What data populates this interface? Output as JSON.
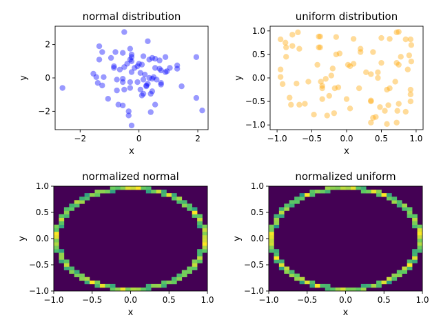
{
  "figure": {
    "background": "#ffffff"
  },
  "chart_data": [
    {
      "type": "scatter",
      "title": "normal distribution",
      "xlabel": "x",
      "ylabel": "y",
      "xlim": [
        -2.85,
        2.35
      ],
      "ylim": [
        -3.1,
        3.1
      ],
      "xticks": [
        -2,
        0,
        2
      ],
      "xtick_labels": [
        "−2",
        "0",
        "2"
      ],
      "yticks": [
        -2,
        0,
        2
      ],
      "ytick_labels": [
        "−2",
        "0",
        "2"
      ],
      "grid": false,
      "legend": "none",
      "color": "#0000ff",
      "alpha": 0.4,
      "points": [
        [
          -2.6,
          -0.6
        ],
        [
          -0.5,
          2.75
        ],
        [
          0.3,
          2.2
        ],
        [
          0.15,
          1.3
        ],
        [
          -1.35,
          1.9
        ],
        [
          -1.25,
          1.55
        ],
        [
          -0.8,
          1.55
        ],
        [
          -0.55,
          1.5
        ],
        [
          -0.3,
          1.75
        ],
        [
          -0.25,
          1.4
        ],
        [
          -0.3,
          1.1
        ],
        [
          -0.25,
          1.0
        ],
        [
          0.45,
          1.2
        ],
        [
          0.35,
          1.1
        ],
        [
          0.55,
          1.15
        ],
        [
          0.7,
          1.05
        ],
        [
          0.9,
          1.25
        ],
        [
          1.95,
          1.25
        ],
        [
          -0.95,
          1.2
        ],
        [
          -1.35,
          1.1
        ],
        [
          0.0,
          0.85
        ],
        [
          0.1,
          0.8
        ],
        [
          -0.05,
          0.7
        ],
        [
          -0.4,
          0.85
        ],
        [
          -0.5,
          0.65
        ],
        [
          -0.65,
          0.5
        ],
        [
          -0.85,
          0.6
        ],
        [
          -0.85,
          0.7
        ],
        [
          0.55,
          0.6
        ],
        [
          0.7,
          0.55
        ],
        [
          0.75,
          0.45
        ],
        [
          1.05,
          0.6
        ],
        [
          1.3,
          0.75
        ],
        [
          1.3,
          0.55
        ],
        [
          0.95,
          0.4
        ],
        [
          0.9,
          0.35
        ],
        [
          -0.25,
          0.35
        ],
        [
          0.05,
          0.3
        ],
        [
          0.2,
          0.2
        ],
        [
          -1.55,
          0.25
        ],
        [
          -1.45,
          0.05
        ],
        [
          -1.2,
          0.05
        ],
        [
          -1.4,
          -0.3
        ],
        [
          -1.25,
          -0.45
        ],
        [
          -0.75,
          -0.1
        ],
        [
          -0.55,
          -0.05
        ],
        [
          -0.55,
          -0.25
        ],
        [
          -0.05,
          -0.25
        ],
        [
          0.15,
          -0.1
        ],
        [
          0.3,
          -0.35
        ],
        [
          0.45,
          -0.05
        ],
        [
          0.5,
          0.05
        ],
        [
          0.6,
          -0.1
        ],
        [
          0.75,
          -0.3
        ],
        [
          0.75,
          -0.4
        ],
        [
          -0.3,
          -0.6
        ],
        [
          0.05,
          -0.7
        ],
        [
          0.25,
          -0.5
        ],
        [
          -0.75,
          -0.75
        ],
        [
          -0.5,
          -0.7
        ],
        [
          0.15,
          -0.95
        ],
        [
          0.4,
          -0.95
        ],
        [
          0.45,
          -0.8
        ],
        [
          0.1,
          -1.05
        ],
        [
          -1.05,
          -1.25
        ],
        [
          -0.7,
          -1.6
        ],
        [
          -0.55,
          -1.65
        ],
        [
          -0.35,
          -2.0
        ],
        [
          -0.35,
          -2.25
        ],
        [
          0.4,
          -2.05
        ],
        [
          0.55,
          -1.6
        ],
        [
          -0.25,
          -2.85
        ],
        [
          1.45,
          -0.5
        ],
        [
          1.95,
          -1.2
        ],
        [
          2.15,
          -1.95
        ],
        [
          -0.25,
          1.25
        ],
        [
          0.25,
          -0.45
        ],
        [
          -0.15,
          0.6
        ],
        [
          0.35,
          0.0
        ],
        [
          -0.3,
          -0.25
        ]
      ]
    },
    {
      "type": "scatter",
      "title": "uniform distribution",
      "xlabel": "x",
      "ylabel": "y",
      "xlim": [
        -1.1,
        1.1
      ],
      "ylim": [
        -1.1,
        1.1
      ],
      "xticks": [
        -1,
        -0.5,
        0,
        0.5,
        1
      ],
      "xtick_labels": [
        "−1.0",
        "−0.5",
        "0.0",
        "0.5",
        "1.0"
      ],
      "yticks": [
        -1,
        -0.5,
        0,
        0.5,
        1
      ],
      "ytick_labels": [
        "−1.0",
        "−0.5",
        "0.0",
        "0.5",
        "1.0"
      ],
      "grid": false,
      "legend": "none",
      "color": "#ffa500",
      "alpha": 0.4,
      "points": [
        [
          -0.95,
          0.82
        ],
        [
          -0.88,
          0.75
        ],
        [
          -0.87,
          0.65
        ],
        [
          -0.78,
          0.92
        ],
        [
          -0.7,
          0.97
        ],
        [
          -0.78,
          0.68
        ],
        [
          -0.68,
          0.62
        ],
        [
          -0.4,
          0.88
        ],
        [
          -0.38,
          0.88
        ],
        [
          -0.4,
          0.65
        ],
        [
          -0.38,
          0.65
        ],
        [
          -0.15,
          0.87
        ],
        [
          0.1,
          0.83
        ],
        [
          -0.15,
          0.5
        ],
        [
          -0.1,
          0.52
        ],
        [
          0.2,
          0.62
        ],
        [
          0.2,
          0.55
        ],
        [
          0.38,
          0.55
        ],
        [
          0.5,
          0.85
        ],
        [
          0.62,
          0.83
        ],
        [
          0.72,
          0.97
        ],
        [
          0.75,
          0.98
        ],
        [
          0.85,
          0.82
        ],
        [
          0.92,
          0.82
        ],
        [
          0.93,
          0.7
        ],
        [
          0.9,
          0.48
        ],
        [
          0.78,
          0.45
        ],
        [
          0.93,
          0.35
        ],
        [
          0.72,
          0.32
        ],
        [
          0.75,
          0.28
        ],
        [
          0.88,
          0.18
        ],
        [
          0.5,
          0.32
        ],
        [
          0.45,
          0.12
        ],
        [
          0.35,
          0.08
        ],
        [
          0.28,
          0.12
        ],
        [
          0.05,
          0.25
        ],
        [
          0.1,
          0.3
        ],
        [
          0.02,
          0.28
        ],
        [
          -0.2,
          0.2
        ],
        [
          -0.22,
          0.05
        ],
        [
          -0.42,
          0.28
        ],
        [
          -0.87,
          0.45
        ],
        [
          -0.95,
          0.18
        ],
        [
          -0.95,
          0.02
        ],
        [
          -0.92,
          -0.13
        ],
        [
          -0.72,
          -0.12
        ],
        [
          -0.55,
          -0.08
        ],
        [
          -0.37,
          -0.08
        ],
        [
          -0.35,
          -0.17
        ],
        [
          -0.35,
          -0.22
        ],
        [
          -0.25,
          -0.38
        ],
        [
          -0.35,
          -0.45
        ],
        [
          -0.17,
          -0.22
        ],
        [
          -0.12,
          -0.2
        ],
        [
          0.18,
          -0.22
        ],
        [
          0.35,
          -0.48
        ],
        [
          0.48,
          -0.62
        ],
        [
          0.58,
          -0.25
        ],
        [
          0.62,
          -0.22
        ],
        [
          0.75,
          -0.55
        ],
        [
          0.73,
          -0.7
        ],
        [
          0.92,
          -0.25
        ],
        [
          0.92,
          -0.35
        ],
        [
          0.92,
          -0.5
        ],
        [
          0.85,
          -0.72
        ],
        [
          0.72,
          -0.95
        ],
        [
          0.58,
          -0.98
        ],
        [
          0.55,
          -0.7
        ],
        [
          0.6,
          -0.58
        ],
        [
          0.42,
          -0.83
        ],
        [
          0.38,
          -0.85
        ],
        [
          0.35,
          -0.95
        ],
        [
          0.05,
          -0.65
        ],
        [
          0.0,
          -0.45
        ],
        [
          -0.18,
          -0.75
        ],
        [
          -0.28,
          -0.8
        ],
        [
          -0.47,
          -0.78
        ],
        [
          -0.6,
          -0.55
        ],
        [
          -0.68,
          -0.57
        ],
        [
          -0.82,
          -0.42
        ],
        [
          -0.8,
          -0.57
        ],
        [
          0.45,
          0.0
        ],
        [
          0.7,
          -0.08
        ],
        [
          0.35,
          -0.5
        ],
        [
          -0.3,
          -0.02
        ]
      ]
    },
    {
      "type": "heatmap",
      "title": "normalized normal",
      "xlabel": "x",
      "ylabel": "y",
      "xlim": [
        -1,
        1
      ],
      "ylim": [
        -1,
        1
      ],
      "bins": 30,
      "xticks": [
        -1,
        -0.5,
        0,
        0.5,
        1
      ],
      "xtick_labels": [
        "−1.0",
        "−0.5",
        "0.0",
        "0.5",
        "1.0"
      ],
      "yticks": [
        -1,
        -0.5,
        0,
        0.5,
        1
      ],
      "ytick_labels": [
        "−1.0",
        "−0.5",
        "0.0",
        "0.5",
        "1.0"
      ],
      "grid": false,
      "legend": "none",
      "colormap": "viridis",
      "background_color": "#440154",
      "ring_radius": 0.97,
      "ring_seed": 11
    },
    {
      "type": "heatmap",
      "title": "normalized uniform",
      "xlabel": "x",
      "ylabel": "y",
      "xlim": [
        -1,
        1
      ],
      "ylim": [
        -1,
        1
      ],
      "bins": 30,
      "xticks": [
        -1,
        -0.5,
        0,
        0.5,
        1
      ],
      "xtick_labels": [
        "−1.0",
        "−0.5",
        "0.0",
        "0.5",
        "1.0"
      ],
      "yticks": [
        -1,
        -0.5,
        0,
        0.5,
        1
      ],
      "ytick_labels": [
        "−1.0",
        "−0.5",
        "0.0",
        "0.5",
        "1.0"
      ],
      "grid": false,
      "legend": "none",
      "colormap": "viridis",
      "background_color": "#440154",
      "ring_radius": 0.97,
      "ring_seed": 23
    }
  ]
}
